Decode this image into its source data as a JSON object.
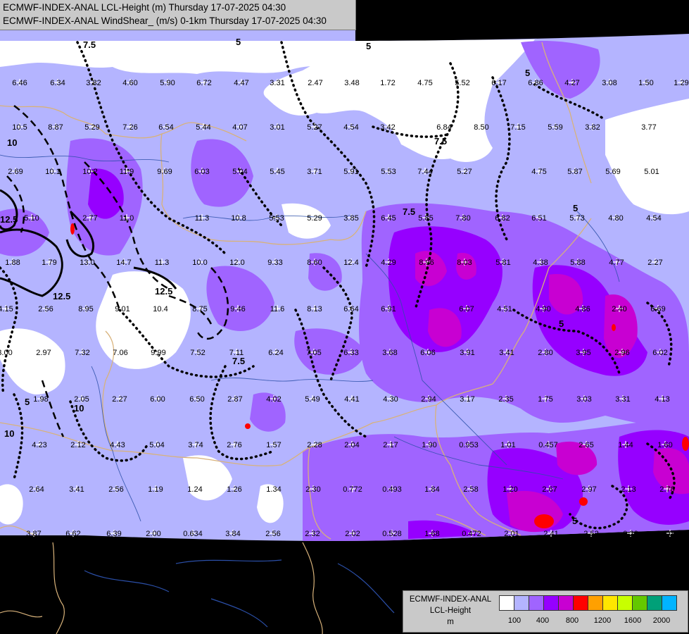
{
  "title": {
    "line1": "ECMWF-INDEX-ANAL LCL-Height (m) Thursday 17-07-2025 04:30",
    "line2": "ECMWF-INDEX-ANAL WindShear_ (m/s) 0-1km Thursday 17-07-2025 04:30"
  },
  "legend": {
    "title1": "ECMWF-INDEX-ANAL",
    "title2": "LCL-Height",
    "unit": "m",
    "colors": [
      "#ffffff",
      "#b4b4ff",
      "#a064ff",
      "#9600ff",
      "#c800d2",
      "#ff0000",
      "#ffa000",
      "#ffe600",
      "#c8ff00",
      "#64c800",
      "#00a078",
      "#00b4ff"
    ],
    "ticks": [
      "100",
      "400",
      "800",
      "1200",
      "1600",
      "2000"
    ]
  },
  "contour_labels": [
    "7.5",
    "5",
    "10",
    "5",
    "7.5",
    "12.5",
    "12.5",
    "12.5",
    "10",
    "7.5",
    "5",
    "5",
    "7.5",
    "5",
    "5",
    "10",
    "5"
  ],
  "station_values": [
    "6.46",
    "6.34",
    "3.82",
    "4.60",
    "5.90",
    "6.72",
    "4.47",
    "3.31",
    "2.47",
    "3.48",
    "1.72",
    "4.75",
    "5.52",
    "6.17",
    "6.86",
    "4.27",
    "3.08",
    "1.50",
    "1.29",
    "10.5",
    "8.87",
    "5.29",
    "7.26",
    "6.54",
    "5.44",
    "4.07",
    "3.01",
    "5.27",
    "4.54",
    "3.42",
    "6.84",
    "8.50",
    "7.15",
    "5.59",
    "3.82",
    "3.77",
    "2.69",
    "10.1",
    "10.2",
    "11.9",
    "9.69",
    "6.03",
    "5.04",
    "5.45",
    "3.71",
    "5.91",
    "5.53",
    "7.44",
    "5.27",
    "4.75",
    "5.87",
    "5.69",
    "5.01",
    "5.10",
    "2.77",
    "11.0",
    "11.3",
    "10.8",
    "5.53",
    "5.29",
    "3.85",
    "6.45",
    "5.85",
    "7.80",
    "6.82",
    "6.51",
    "5.73",
    "4.80",
    "4.54",
    "1.88",
    "1.79",
    "13.0",
    "14.7",
    "11.3",
    "10.0",
    "12.0",
    "9.33",
    "8.60",
    "12.4",
    "4.29",
    "8.96",
    "8.03",
    "5.81",
    "4.38",
    "5.88",
    "4.77",
    "2.27",
    "4.15",
    "2.56",
    "8.95",
    "9.01",
    "10.4",
    "8.75",
    "9.46",
    "11.6",
    "8.13",
    "6.64",
    "6.91",
    "6.07",
    "4.51",
    "4.90",
    "4.86",
    "2.40",
    "6.69",
    "3.00",
    "2.97",
    "7.32",
    "7.06",
    "9.99",
    "7.52",
    "7.11",
    "6.24",
    "7.05",
    "6.33",
    "3.68",
    "6.06",
    "3.91",
    "3.41",
    "2.80",
    "3.95",
    "2.96",
    "6.02",
    "1.98",
    "2.05",
    "2.27",
    "6.00",
    "6.50",
    "2.87",
    "4.02",
    "5.49",
    "4.41",
    "4.30",
    "2.94",
    "3.17",
    "2.35",
    "1.75",
    "3.03",
    "3.31",
    "4.13",
    "4.23",
    "2.12",
    "4.43",
    "5.04",
    "3.74",
    "2.76",
    "1.57",
    "2.28",
    "2.04",
    "2.17",
    "1.90",
    "0.953",
    "1.01",
    "0.457",
    "2.65",
    "1.44",
    "1.60",
    "2.64",
    "3.41",
    "2.56",
    "1.19",
    "1.24",
    "1.26",
    "1.34",
    "2.30",
    "0.772",
    "0.493",
    "1.84",
    "2.58",
    "1.20",
    "2.67",
    "2.97",
    "2.13",
    "2.70",
    "3.87",
    "6.62",
    "6.39",
    "2.00",
    "0.634",
    "3.84",
    "2.56",
    "2.32",
    "2.02",
    "0.528",
    "1.68",
    "0.472",
    "2.01",
    "2.41",
    "2.52",
    "0.22",
    "4.02",
    "2.32",
    "2.15"
  ]
}
